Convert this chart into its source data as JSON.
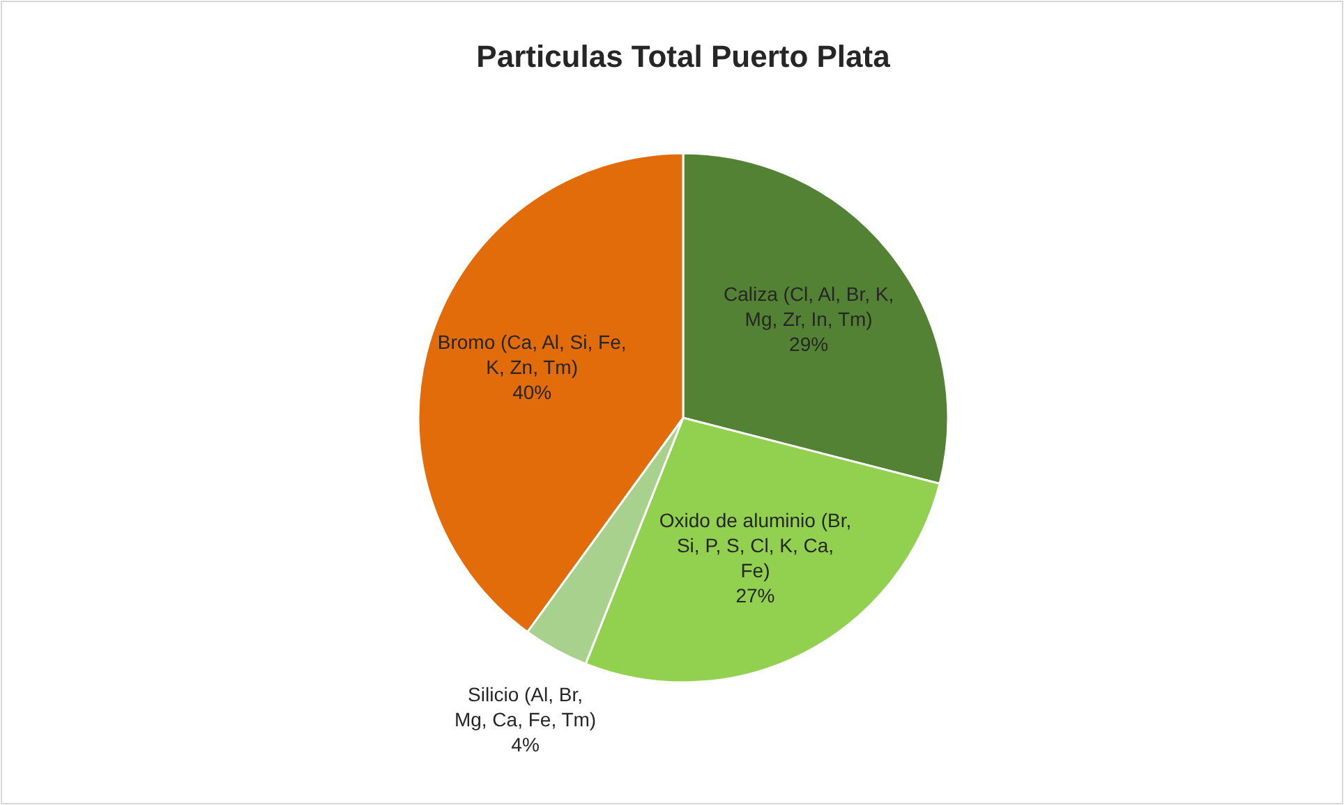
{
  "chart_data": {
    "type": "pie",
    "title": "Particulas Total Puerto Plata",
    "categories": [
      "Caliza (Cl, Al, Br, K, Mg, Zr, In, Tm)",
      "Oxido de aluminio (Br, Si, P, S, Cl, K, Ca, Fe)",
      "Silicio (Al, Br, Mg, Ca, Fe, Tm)",
      "Bromo (Ca, Al, Si, Fe, K, Zn, Tm)"
    ],
    "values": [
      29,
      27,
      4,
      40
    ],
    "value_labels": [
      "29%",
      "27%",
      "4%",
      "40%"
    ],
    "colors": [
      "#548235",
      "#92d050",
      "#a9d18e",
      "#e26b0a"
    ]
  }
}
